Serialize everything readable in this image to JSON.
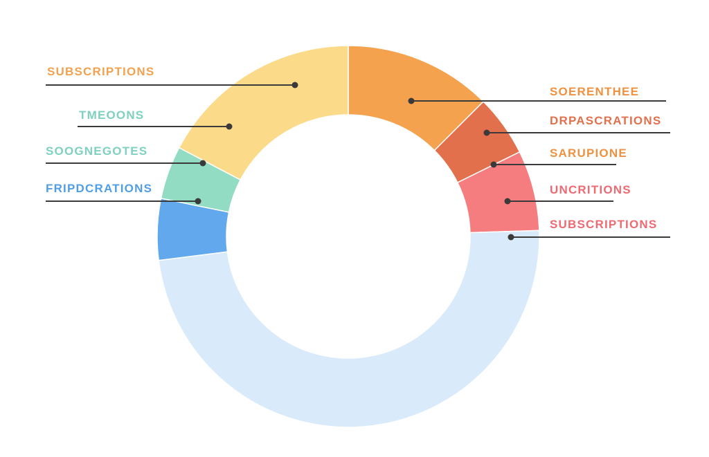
{
  "chart_data": {
    "type": "pie",
    "variant": "donut",
    "title": "",
    "legend": "none",
    "slices": [
      {
        "label": "SOERENTHEE",
        "value": 12.5,
        "color": "#f4a24e"
      },
      {
        "label": "DRPASCRATIONS",
        "value": 5.2,
        "color": "#e2704c"
      },
      {
        "label": "SARUPIONE",
        "value": 0,
        "color": "#e2704c"
      },
      {
        "label": "UNCRITIONS",
        "value": 0,
        "color": "#f67d7f"
      },
      {
        "label": "SUBSCRIPTIONS",
        "value": 6.8,
        "color": "#f67d7f"
      },
      {
        "label": "",
        "value": 48.5,
        "color": "#d9ebfb"
      },
      {
        "label": "FRIPDCRATIONS",
        "value": 5.2,
        "color": "#62a8ec"
      },
      {
        "label": "SOOGNEGOTES",
        "value": 4.5,
        "color": "#91dcc3"
      },
      {
        "label": "TMEOONS",
        "value": 0,
        "color": "#fbdb89"
      },
      {
        "label": "SUBSCRIPTIONS",
        "value": 17.3,
        "color": "#fbdb89"
      }
    ]
  },
  "labels": [
    {
      "text": "SUBSCRIPTIONS",
      "color": "#f2a24f"
    },
    {
      "text": "TMEOONS",
      "color": "#7ed1bf"
    },
    {
      "text": "SOOGNEGOTES",
      "color": "#7ed1bf"
    },
    {
      "text": "FRIPDCRATIONS",
      "color": "#4f9ee6"
    },
    {
      "text": "SOERENTHEE",
      "color": "#ee9140"
    },
    {
      "text": "DRPASCRATIONS",
      "color": "#e2704c"
    },
    {
      "text": "SARUPIONE",
      "color": "#ee9140"
    },
    {
      "text": "UNCRITIONS",
      "color": "#ee6a73"
    },
    {
      "text": "SUBSCRIPTIONS",
      "color": "#ee6a73"
    }
  ]
}
